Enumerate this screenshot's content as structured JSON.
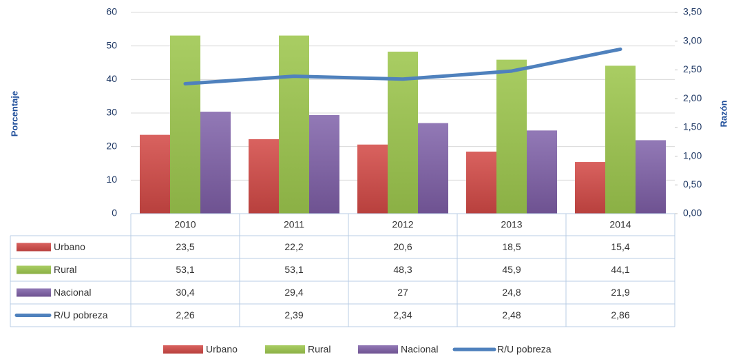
{
  "chart_data": {
    "type": "bar",
    "categories": [
      "2010",
      "2011",
      "2012",
      "2013",
      "2014"
    ],
    "y_label": "Porcentaje",
    "y2_label": "Razón",
    "ylim": [
      0,
      60
    ],
    "yticks": [
      0,
      10,
      20,
      30,
      40,
      50,
      60
    ],
    "y2lim": [
      0,
      3.5
    ],
    "y2ticks": [
      {
        "value": 0,
        "label": "0,00"
      },
      {
        "value": 0.5,
        "label": "0,50"
      },
      {
        "value": 1,
        "label": "1,00"
      },
      {
        "value": 1.5,
        "label": "1,50"
      },
      {
        "value": 2,
        "label": "2,00"
      },
      {
        "value": 2.5,
        "label": "2,50"
      },
      {
        "value": 3,
        "label": "3,00"
      },
      {
        "value": 3.5,
        "label": "3,50"
      }
    ],
    "grid": true,
    "series": [
      {
        "name": "Urbano",
        "color": "#c0504d",
        "type": "bar",
        "values": [
          23.5,
          22.2,
          20.6,
          18.5,
          15.4
        ],
        "value_labels": [
          "23,5",
          "22,2",
          "20,6",
          "18,5",
          "15,4"
        ]
      },
      {
        "name": "Rural",
        "color": "#9bbb59",
        "type": "bar",
        "values": [
          53.1,
          53.1,
          48.3,
          45.9,
          44.1
        ],
        "value_labels": [
          "53,1",
          "53,1",
          "48,3",
          "45,9",
          "44,1"
        ]
      },
      {
        "name": "Nacional",
        "color": "#8064a2",
        "type": "bar",
        "values": [
          30.4,
          29.4,
          27,
          24.8,
          21.9
        ],
        "value_labels": [
          "30,4",
          "29,4",
          "27",
          "24,8",
          "21,9"
        ]
      },
      {
        "name": "R/U pobreza",
        "color": "#4f81bd",
        "type": "line",
        "axis": "y2",
        "values": [
          2.26,
          2.39,
          2.34,
          2.48,
          2.86
        ],
        "value_labels": [
          "2,26",
          "2,39",
          "2,34",
          "2,48",
          "2,86"
        ]
      }
    ]
  }
}
